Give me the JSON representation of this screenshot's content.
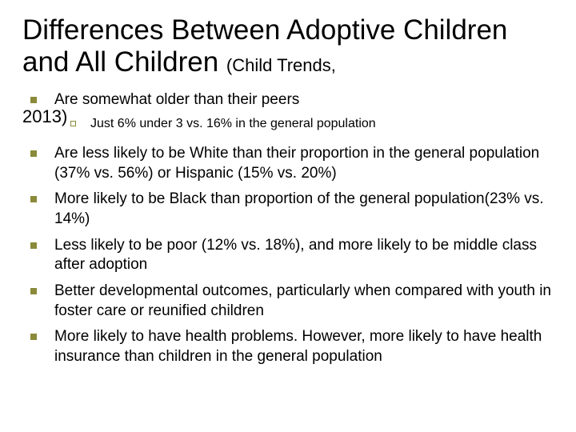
{
  "title_main": "Differences Between Adoptive Children and All Children ",
  "title_sub": "(Child Trends,",
  "year_overlap": "2013)",
  "colors": {
    "bullet": "#8a8a3a",
    "text": "#000000",
    "background": "#ffffff"
  },
  "typography": {
    "title_fontsize": 35,
    "subtitle_fontsize": 22,
    "l1_fontsize": 19,
    "l2_fontsize": 16,
    "font_family": "Arial"
  },
  "bullets": [
    {
      "text": "Are somewhat older than their peers",
      "sub": [
        {
          "text": "Just 6% under 3 vs. 16% in the general population"
        }
      ]
    },
    {
      "text": "Are less likely to be White than their proportion in the general population (37% vs. 56%) or Hispanic (15% vs. 20%)"
    },
    {
      "text": "More likely to be Black than proportion of the general population(23% vs. 14%)"
    },
    {
      "text": "Less likely to be poor (12%  vs. 18%), and more likely to be middle class after adoption"
    },
    {
      "text": "Better developmental outcomes, particularly when compared with youth in foster care or reunified children"
    },
    {
      "text": "More likely to have health problems. However, more likely to have health insurance than children in the general population"
    }
  ]
}
